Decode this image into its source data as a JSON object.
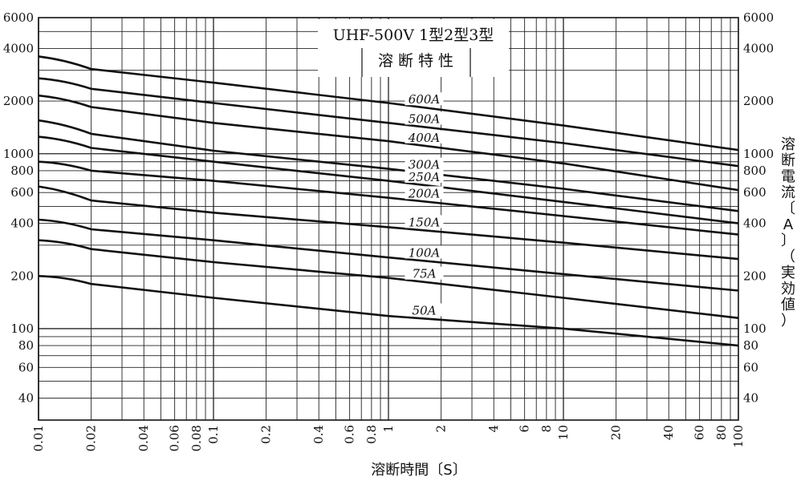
{
  "chart_data": {
    "type": "line",
    "title": "UHF-500V 1型2型3型",
    "subtitle": "溶断特性",
    "xlabel": "溶断時間〔S〕",
    "ylabel": "溶断電流〔A〕（実効値）",
    "x_scale": "log",
    "y_scale": "log",
    "xlim": [
      0.01,
      100
    ],
    "ylim": [
      30,
      6000
    ],
    "grid": true,
    "x_tick_labels": [
      "0.01",
      "0.02",
      "0.04",
      "0.06",
      "0.08",
      "0.1",
      "0.2",
      "0.4",
      "0.6",
      "0.8",
      "1",
      "2",
      "4",
      "6",
      "8",
      "10",
      "20",
      "40",
      "60",
      "80",
      "100"
    ],
    "y_tick_labels": [
      "6000",
      "4000",
      "2000",
      "1000",
      "800",
      "600",
      "400",
      "200",
      "100",
      "80",
      "60",
      "40"
    ],
    "series": [
      {
        "name": "600A",
        "label_x": 1.6,
        "points": [
          [
            0.01,
            3600
          ],
          [
            0.02,
            3050
          ],
          [
            0.1,
            2550
          ],
          [
            1,
            1950
          ],
          [
            10,
            1450
          ],
          [
            100,
            1050
          ]
        ]
      },
      {
        "name": "500A",
        "label_x": 1.6,
        "points": [
          [
            0.01,
            2700
          ],
          [
            0.02,
            2350
          ],
          [
            0.1,
            1950
          ],
          [
            1,
            1500
          ],
          [
            10,
            1150
          ],
          [
            100,
            850
          ]
        ]
      },
      {
        "name": "400A",
        "label_x": 1.6,
        "points": [
          [
            0.01,
            2150
          ],
          [
            0.02,
            1850
          ],
          [
            0.1,
            1500
          ],
          [
            1,
            1180
          ],
          [
            10,
            880
          ],
          [
            100,
            620
          ]
        ]
      },
      {
        "name": "300A",
        "label_x": 1.6,
        "points": [
          [
            0.01,
            1550
          ],
          [
            0.02,
            1300
          ],
          [
            0.1,
            1040
          ],
          [
            1,
            820
          ],
          [
            10,
            630
          ],
          [
            100,
            470
          ]
        ]
      },
      {
        "name": "250A",
        "label_x": 1.6,
        "points": [
          [
            0.01,
            1250
          ],
          [
            0.02,
            1080
          ],
          [
            0.1,
            900
          ],
          [
            1,
            700
          ],
          [
            10,
            530
          ],
          [
            100,
            400
          ]
        ]
      },
      {
        "name": "200A",
        "label_x": 1.6,
        "points": [
          [
            0.01,
            900
          ],
          [
            0.02,
            800
          ],
          [
            0.1,
            700
          ],
          [
            1,
            560
          ],
          [
            10,
            440
          ],
          [
            100,
            345
          ]
        ]
      },
      {
        "name": "150A",
        "label_x": 1.6,
        "points": [
          [
            0.01,
            650
          ],
          [
            0.02,
            540
          ],
          [
            0.1,
            460
          ],
          [
            1,
            380
          ],
          [
            10,
            310
          ],
          [
            100,
            250
          ]
        ]
      },
      {
        "name": "100A",
        "label_x": 1.6,
        "points": [
          [
            0.01,
            420
          ],
          [
            0.02,
            370
          ],
          [
            0.1,
            320
          ],
          [
            1,
            255
          ],
          [
            10,
            205
          ],
          [
            100,
            165
          ]
        ]
      },
      {
        "name": "75A",
        "label_x": 1.6,
        "points": [
          [
            0.01,
            320
          ],
          [
            0.02,
            285
          ],
          [
            0.1,
            240
          ],
          [
            1,
            195
          ],
          [
            10,
            150
          ],
          [
            100,
            115
          ]
        ]
      },
      {
        "name": "50A",
        "label_x": 1.6,
        "points": [
          [
            0.01,
            200
          ],
          [
            0.02,
            180
          ],
          [
            0.1,
            150
          ],
          [
            1,
            118
          ],
          [
            10,
            100
          ],
          [
            100,
            80
          ]
        ]
      }
    ]
  }
}
